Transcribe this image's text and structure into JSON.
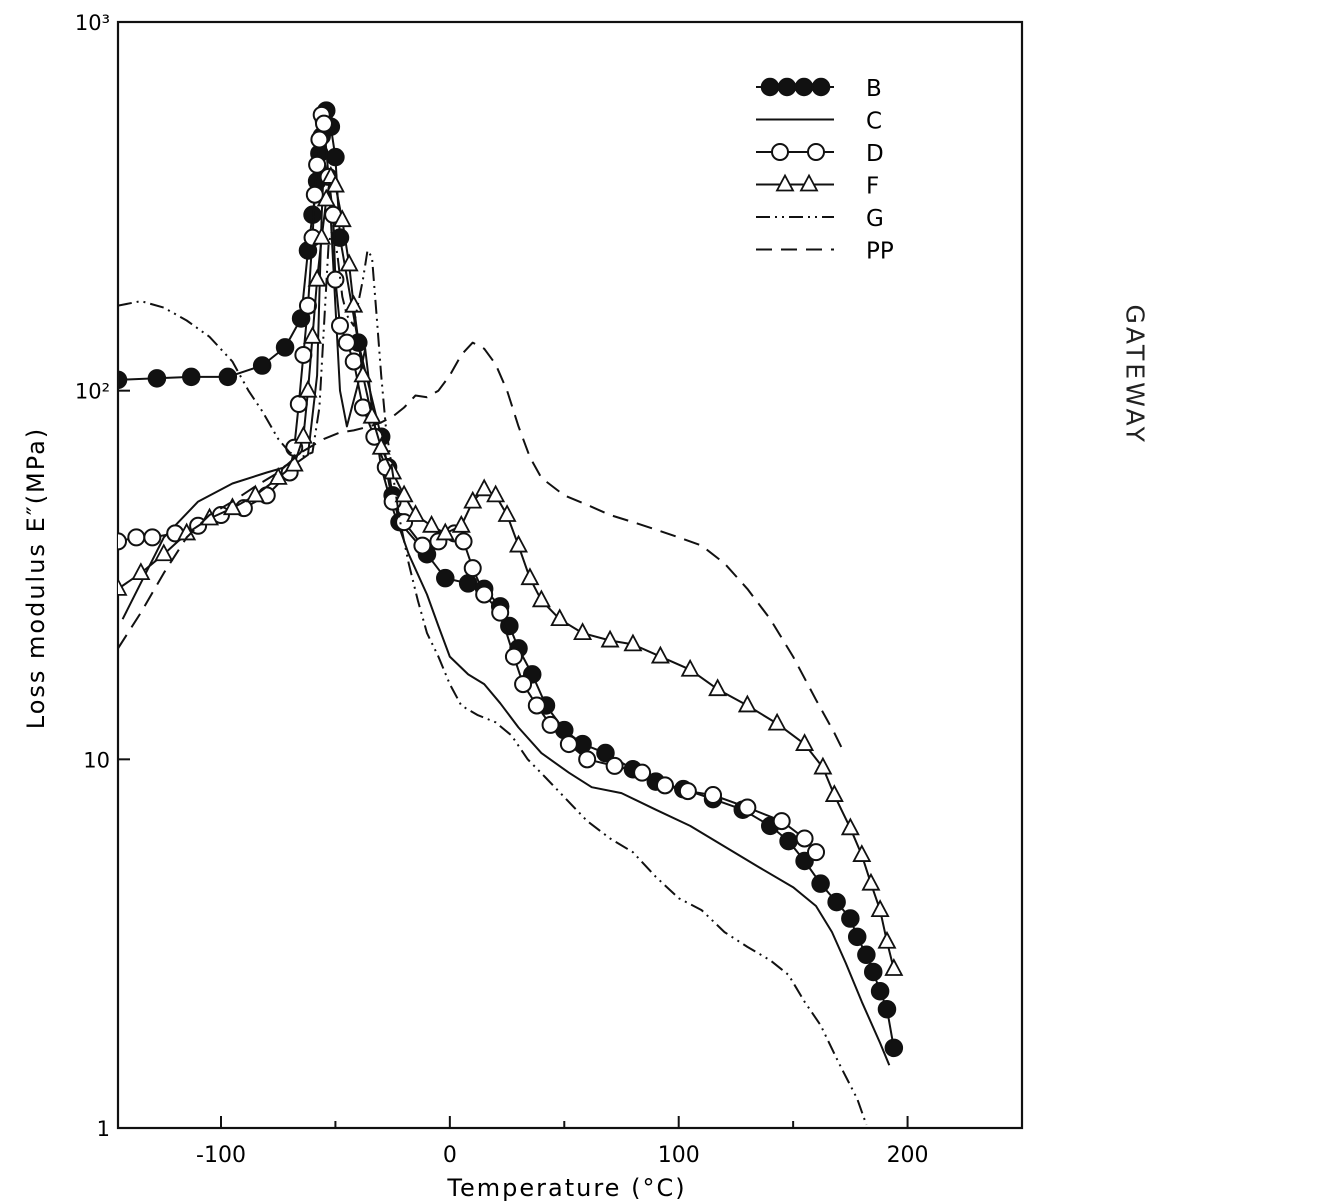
{
  "side_text": "GATEWAY",
  "chart_data": {
    "type": "line",
    "title": "",
    "xlabel": "Temperature (°C)",
    "ylabel": "Loss modulus E″(MPa)",
    "xlim": [
      -145,
      250
    ],
    "ylim": [
      1,
      1000
    ],
    "yscale": "log",
    "x_ticks": [
      -100,
      0,
      100,
      200
    ],
    "x_tick_labels": [
      "-100",
      "0",
      "100",
      "200"
    ],
    "y_ticks": [
      1,
      10,
      100,
      1000
    ],
    "y_tick_labels": [
      "1",
      "10",
      "10²",
      "10³"
    ],
    "grid": false,
    "legend_position": "top-right",
    "series": [
      {
        "name": "B",
        "style": "filled-circle",
        "points": [
          [
            -145,
            107
          ],
          [
            -128,
            108
          ],
          [
            -113,
            109
          ],
          [
            -97,
            109
          ],
          [
            -82,
            117
          ],
          [
            -72,
            131
          ],
          [
            -65,
            157
          ],
          [
            -62,
            240
          ],
          [
            -60,
            300
          ],
          [
            -58,
            370
          ],
          [
            -57,
            440
          ],
          [
            -56,
            490
          ],
          [
            -55,
            540
          ],
          [
            -54,
            575
          ],
          [
            -52,
            520
          ],
          [
            -50,
            430
          ],
          [
            -48,
            260
          ],
          [
            -40,
            135
          ],
          [
            -30,
            75
          ],
          [
            -27,
            62
          ],
          [
            -25,
            52
          ],
          [
            -22,
            44
          ],
          [
            -10,
            36
          ],
          [
            -2,
            31
          ],
          [
            8,
            30
          ],
          [
            15,
            29
          ],
          [
            22,
            26
          ],
          [
            26,
            23
          ],
          [
            30,
            20
          ],
          [
            36,
            17
          ],
          [
            42,
            14
          ],
          [
            50,
            12
          ],
          [
            58,
            11
          ],
          [
            68,
            10.4
          ],
          [
            80,
            9.4
          ],
          [
            90,
            8.7
          ],
          [
            102,
            8.3
          ],
          [
            115,
            7.8
          ],
          [
            128,
            7.3
          ],
          [
            140,
            6.6
          ],
          [
            148,
            6
          ],
          [
            155,
            5.3
          ],
          [
            162,
            4.6
          ],
          [
            169,
            4.1
          ],
          [
            175,
            3.7
          ],
          [
            178,
            3.3
          ],
          [
            182,
            2.95
          ],
          [
            185,
            2.65
          ],
          [
            188,
            2.35
          ],
          [
            191,
            2.1
          ],
          [
            194,
            1.65
          ]
        ],
        "color": "#111111"
      },
      {
        "name": "C",
        "style": "solid",
        "points": [
          [
            -143,
            24
          ],
          [
            -125,
            40
          ],
          [
            -110,
            50
          ],
          [
            -95,
            56
          ],
          [
            -80,
            60
          ],
          [
            -68,
            63
          ],
          [
            -62,
            67
          ],
          [
            -58,
            110
          ],
          [
            -56,
            300
          ],
          [
            -55,
            420
          ],
          [
            -53,
            380
          ],
          [
            -50,
            170
          ],
          [
            -48,
            100
          ],
          [
            -45,
            80
          ],
          [
            -40,
            105
          ],
          [
            -37,
            130
          ],
          [
            -34,
            90
          ],
          [
            -30,
            62
          ],
          [
            -25,
            48
          ],
          [
            -18,
            36
          ],
          [
            -10,
            28
          ],
          [
            -5,
            23
          ],
          [
            0,
            19
          ],
          [
            8,
            17
          ],
          [
            15,
            16
          ],
          [
            22,
            14.2
          ],
          [
            30,
            12.2
          ],
          [
            40,
            10.4
          ],
          [
            52,
            9.2
          ],
          [
            62,
            8.4
          ],
          [
            75,
            8.1
          ],
          [
            90,
            7.3
          ],
          [
            105,
            6.6
          ],
          [
            120,
            5.8
          ],
          [
            135,
            5.1
          ],
          [
            150,
            4.5
          ],
          [
            160,
            4
          ],
          [
            167,
            3.4
          ],
          [
            173,
            2.8
          ],
          [
            180,
            2.2
          ],
          [
            188,
            1.7
          ],
          [
            192,
            1.48
          ]
        ],
        "color": "#111111"
      },
      {
        "name": "D",
        "style": "open-circle",
        "points": [
          [
            -145,
            39
          ],
          [
            -137,
            40
          ],
          [
            -130,
            40
          ],
          [
            -120,
            41
          ],
          [
            -110,
            43
          ],
          [
            -100,
            46
          ],
          [
            -90,
            48
          ],
          [
            -80,
            52
          ],
          [
            -70,
            60
          ],
          [
            -68,
            70
          ],
          [
            -66,
            92
          ],
          [
            -64,
            125
          ],
          [
            -62,
            170
          ],
          [
            -60,
            260
          ],
          [
            -59,
            340
          ],
          [
            -58,
            410
          ],
          [
            -57,
            480
          ],
          [
            -56,
            560
          ],
          [
            -55,
            530
          ],
          [
            -53,
            380
          ],
          [
            -51,
            300
          ],
          [
            -50,
            200
          ],
          [
            -48,
            150
          ],
          [
            -45,
            135
          ],
          [
            -42,
            120
          ],
          [
            -38,
            90
          ],
          [
            -33,
            75
          ],
          [
            -28,
            62
          ],
          [
            -25,
            50
          ],
          [
            -20,
            44
          ],
          [
            -12,
            38
          ],
          [
            -5,
            39
          ],
          [
            2,
            41
          ],
          [
            6,
            39
          ],
          [
            10,
            33
          ],
          [
            15,
            28
          ],
          [
            22,
            25
          ],
          [
            28,
            19
          ],
          [
            32,
            16
          ],
          [
            38,
            14
          ],
          [
            44,
            12.4
          ],
          [
            52,
            11
          ],
          [
            60,
            10
          ],
          [
            72,
            9.6
          ],
          [
            84,
            9.2
          ],
          [
            94,
            8.5
          ],
          [
            104,
            8.2
          ],
          [
            115,
            8
          ],
          [
            130,
            7.4
          ],
          [
            145,
            6.8
          ],
          [
            155,
            6.1
          ],
          [
            160,
            5.6
          ]
        ],
        "color": "#111111"
      },
      {
        "name": "F",
        "style": "open-triangle",
        "points": [
          [
            -145,
            29
          ],
          [
            -135,
            32
          ],
          [
            -125,
            36
          ],
          [
            -115,
            41
          ],
          [
            -105,
            45
          ],
          [
            -95,
            48
          ],
          [
            -85,
            52
          ],
          [
            -75,
            58
          ],
          [
            -68,
            63
          ],
          [
            -64,
            75
          ],
          [
            -62,
            100
          ],
          [
            -60,
            140
          ],
          [
            -58,
            200
          ],
          [
            -56,
            260
          ],
          [
            -54,
            330
          ],
          [
            -52,
            380
          ],
          [
            -50,
            360
          ],
          [
            -47,
            290
          ],
          [
            -44,
            220
          ],
          [
            -42,
            170
          ],
          [
            -38,
            110
          ],
          [
            -34,
            85
          ],
          [
            -30,
            70
          ],
          [
            -25,
            60
          ],
          [
            -20,
            52
          ],
          [
            -15,
            46
          ],
          [
            -8,
            43
          ],
          [
            -2,
            41
          ],
          [
            5,
            43
          ],
          [
            10,
            50
          ],
          [
            15,
            54
          ],
          [
            20,
            52
          ],
          [
            25,
            46
          ],
          [
            30,
            38
          ],
          [
            35,
            31
          ],
          [
            40,
            27
          ],
          [
            48,
            24
          ],
          [
            58,
            22
          ],
          [
            70,
            21
          ],
          [
            80,
            20.5
          ],
          [
            92,
            19
          ],
          [
            105,
            17.5
          ],
          [
            117,
            15.5
          ],
          [
            130,
            14
          ],
          [
            143,
            12.5
          ],
          [
            155,
            11
          ],
          [
            163,
            9.5
          ],
          [
            168,
            8
          ],
          [
            175,
            6.5
          ],
          [
            180,
            5.5
          ],
          [
            184,
            4.6
          ],
          [
            188,
            3.9
          ],
          [
            191,
            3.2
          ],
          [
            194,
            2.7
          ]
        ],
        "color": "#111111"
      },
      {
        "name": "G",
        "style": "dash-dot",
        "points": [
          [
            -145,
            170
          ],
          [
            -135,
            175
          ],
          [
            -125,
            168
          ],
          [
            -115,
            155
          ],
          [
            -105,
            140
          ],
          [
            -95,
            120
          ],
          [
            -88,
            100
          ],
          [
            -82,
            88
          ],
          [
            -75,
            74
          ],
          [
            -70,
            68
          ],
          [
            -65,
            66
          ],
          [
            -60,
            68
          ],
          [
            -57,
            90
          ],
          [
            -55,
            150
          ],
          [
            -53,
            250
          ],
          [
            -51,
            280
          ],
          [
            -49,
            230
          ],
          [
            -47,
            180
          ],
          [
            -45,
            160
          ],
          [
            -42,
            150
          ],
          [
            -38,
            200
          ],
          [
            -36,
            240
          ],
          [
            -34,
            230
          ],
          [
            -32,
            160
          ],
          [
            -30,
            110
          ],
          [
            -28,
            80
          ],
          [
            -25,
            60
          ],
          [
            -22,
            45
          ],
          [
            -18,
            34
          ],
          [
            -14,
            27
          ],
          [
            -10,
            22
          ],
          [
            -5,
            19
          ],
          [
            0,
            16
          ],
          [
            5,
            14
          ],
          [
            12,
            13.2
          ],
          [
            20,
            12.6
          ],
          [
            27,
            11.6
          ],
          [
            34,
            10
          ],
          [
            42,
            8.9
          ],
          [
            50,
            7.9
          ],
          [
            60,
            6.8
          ],
          [
            70,
            6.1
          ],
          [
            80,
            5.6
          ],
          [
            90,
            4.8
          ],
          [
            100,
            4.2
          ],
          [
            110,
            3.9
          ],
          [
            120,
            3.4
          ],
          [
            130,
            3.1
          ],
          [
            140,
            2.85
          ],
          [
            148,
            2.6
          ],
          [
            155,
            2.2
          ],
          [
            162,
            1.9
          ],
          [
            170,
            1.5
          ],
          [
            178,
            1.2
          ],
          [
            182,
            1.02
          ]
        ],
        "color": "#111111"
      },
      {
        "name": "PP",
        "style": "dashed",
        "points": [
          [
            -145,
            20
          ],
          [
            -135,
            25
          ],
          [
            -125,
            32
          ],
          [
            -115,
            40
          ],
          [
            -105,
            46
          ],
          [
            -95,
            50
          ],
          [
            -85,
            55
          ],
          [
            -75,
            60
          ],
          [
            -65,
            68
          ],
          [
            -55,
            74
          ],
          [
            -48,
            77
          ],
          [
            -42,
            78
          ],
          [
            -35,
            80
          ],
          [
            -30,
            82
          ],
          [
            -25,
            85
          ],
          [
            -20,
            90
          ],
          [
            -15,
            97
          ],
          [
            -10,
            96
          ],
          [
            -5,
            100
          ],
          [
            0,
            110
          ],
          [
            5,
            125
          ],
          [
            10,
            135
          ],
          [
            15,
            130
          ],
          [
            20,
            118
          ],
          [
            25,
            100
          ],
          [
            30,
            80
          ],
          [
            35,
            66
          ],
          [
            40,
            58
          ],
          [
            50,
            52
          ],
          [
            60,
            49
          ],
          [
            70,
            46
          ],
          [
            80,
            44
          ],
          [
            90,
            42
          ],
          [
            100,
            40
          ],
          [
            110,
            38
          ],
          [
            120,
            34
          ],
          [
            130,
            29
          ],
          [
            140,
            24
          ],
          [
            150,
            19
          ],
          [
            160,
            14.5
          ],
          [
            168,
            11.8
          ],
          [
            172,
            10.5
          ]
        ],
        "color": "#111111"
      }
    ]
  }
}
